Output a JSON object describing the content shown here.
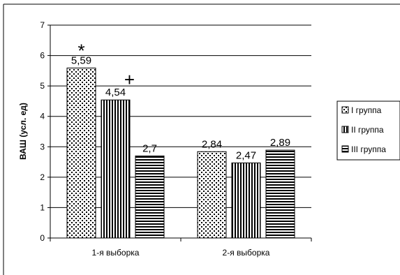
{
  "chart_data": {
    "type": "bar",
    "categories": [
      "1-я выборка",
      "2-я выборка"
    ],
    "series": [
      {
        "name": "I группа",
        "values": [
          5.59,
          2.84
        ],
        "labels": [
          "5,59",
          "2,84"
        ],
        "pattern": "dots"
      },
      {
        "name": "II группа",
        "values": [
          4.54,
          2.47
        ],
        "labels": [
          "4,54",
          "2,47"
        ],
        "pattern": "vertical-stripes"
      },
      {
        "name": "III группа",
        "values": [
          2.7,
          2.89
        ],
        "labels": [
          "2,7",
          "2,89"
        ],
        "pattern": "horizontal-stripes"
      }
    ],
    "ylabel": "ВАШ (усл. ед)",
    "xlabel": "",
    "title": "",
    "ylim": [
      0,
      7
    ],
    "yticks": [
      0,
      1,
      2,
      3,
      4,
      5,
      6,
      7
    ],
    "grid": true,
    "legend_position": "right",
    "annotations": [
      {
        "text": "*",
        "category": 0,
        "series": 0
      },
      {
        "text": "+",
        "category": 0,
        "series": 1
      }
    ]
  }
}
